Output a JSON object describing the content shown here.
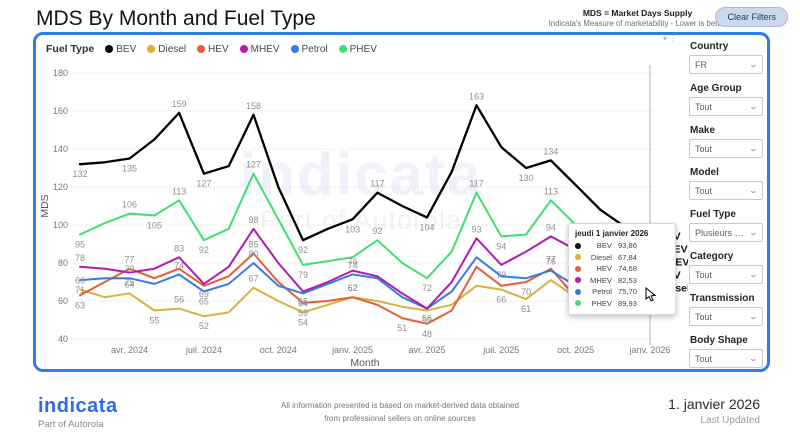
{
  "header": {
    "title": "MDS By Month and Fuel Type",
    "note_title": "MDS = Market Days Supply",
    "note_sub": "Indicata's Measure of marketability - Lower is better",
    "clear_filters_label": "Clear Filters"
  },
  "colors": {
    "card_border": "#2d7ce8",
    "accent_blue": "#2e6ce2"
  },
  "legend": {
    "title": "Fuel Type"
  },
  "chart_data": {
    "type": "line",
    "title": "MDS By Month and Fuel Type",
    "xlabel": "Month",
    "ylabel": "MDS",
    "ylim": [
      40,
      180
    ],
    "y_ticks": [
      40,
      60,
      80,
      100,
      120,
      140,
      160,
      180
    ],
    "grid": "dotted-horizontal",
    "legend_position": "top-left",
    "months": [
      "févr. 2024",
      "mars 2024",
      "avr. 2024",
      "mai 2024",
      "juin 2024",
      "juil. 2024",
      "août 2024",
      "sept. 2024",
      "oct. 2024",
      "nov. 2024",
      "déc. 2024",
      "janv. 2025",
      "févr. 2025",
      "mars 2025",
      "avr. 2025",
      "mai 2025",
      "juin 2025",
      "juil. 2025",
      "août 2025",
      "sept. 2025",
      "oct. 2025",
      "nov. 2025",
      "déc. 2025",
      "janv. 2026"
    ],
    "x_tick_labels": [
      "avr. 2024",
      "juil. 2024",
      "oct. 2024",
      "janv. 2025",
      "avr. 2025",
      "juil. 2025",
      "oct. 2025",
      "janv. 2026"
    ],
    "x_tick_month_indices": [
      2,
      5,
      8,
      11,
      14,
      17,
      20,
      23
    ],
    "cursor_month_index": 23,
    "series": [
      {
        "name": "BEV",
        "color": "#000000",
        "values": [
          132,
          133,
          135,
          145,
          159,
          127,
          131,
          158,
          120,
          92,
          98,
          103,
          117,
          110,
          104,
          128,
          163,
          141,
          130,
          134,
          121,
          108,
          99,
          93.86
        ],
        "labeled_months": [
          0,
          2,
          4,
          5,
          7,
          9,
          11,
          12,
          14,
          16,
          18,
          19,
          22
        ]
      },
      {
        "name": "Diesel",
        "color": "#d9b13c",
        "values": [
          66,
          62,
          64,
          55,
          56,
          52,
          54,
          67,
          60,
          54,
          58,
          62,
          60,
          57,
          55,
          58,
          68,
          66,
          61,
          71,
          62,
          61,
          64,
          67.84
        ],
        "labeled_months": [
          0,
          2,
          3,
          4,
          5,
          7,
          9,
          11,
          14,
          17,
          18,
          20,
          21
        ]
      },
      {
        "name": "HEV",
        "color": "#e55e38",
        "values": [
          63,
          70,
          77,
          72,
          77,
          68,
          73,
          85,
          70,
          59,
          60,
          62,
          58,
          51,
          48,
          55,
          78,
          68,
          70,
          77,
          62,
          64,
          68,
          74.68
        ],
        "labeled_months": [
          0,
          2,
          7,
          9,
          11,
          13,
          14,
          18,
          19
        ]
      },
      {
        "name": "MHEV",
        "color": "#b01ab1",
        "values": [
          78,
          77,
          75,
          77,
          83,
          69,
          78,
          98,
          80,
          65,
          70,
          76,
          73,
          64,
          56,
          70,
          93,
          79,
          86,
          94,
          87,
          84,
          83,
          82.53
        ],
        "labeled_months": [
          0,
          2,
          4,
          5,
          7,
          9,
          11,
          14,
          16,
          17,
          19
        ]
      },
      {
        "name": "Petrol",
        "color": "#3a7be0",
        "values": [
          71,
          72,
          72,
          69,
          74,
          65,
          69,
          80,
          68,
          64,
          69,
          74,
          72,
          62,
          56,
          65,
          83,
          73,
          72,
          76,
          68,
          67,
          70,
          75.7
        ],
        "labeled_months": [
          0,
          2,
          4,
          5,
          7,
          9,
          11,
          19
        ]
      },
      {
        "name": "PHEV",
        "color": "#41de70",
        "values": [
          95,
          101,
          106,
          105,
          113,
          92,
          98,
          127,
          103,
          79,
          81,
          83,
          92,
          80,
          72,
          86,
          117,
          94,
          95,
          113,
          100,
          94,
          91,
          89.93
        ],
        "labeled_months": [
          0,
          2,
          3,
          4,
          5,
          7,
          9,
          12,
          14,
          16,
          17,
          19
        ]
      }
    ]
  },
  "end_labels": [
    "BEV",
    "PHEV",
    "MHEV",
    "HEV",
    "Diesel"
  ],
  "tooltip": {
    "title": "jeudi 1 janvier 2026",
    "rows": [
      {
        "name": "BEV",
        "value": "93,86"
      },
      {
        "name": "Diesel",
        "value": "67,84"
      },
      {
        "name": "HEV",
        "value": "74,68"
      },
      {
        "name": "MHEV",
        "value": "82,53"
      },
      {
        "name": "Petrol",
        "value": "75,70"
      },
      {
        "name": "PHEV",
        "value": "89,93"
      }
    ]
  },
  "watermark": {
    "line1": "indicata",
    "line2": "Part of Autorola"
  },
  "filters": {
    "items": [
      {
        "label": "Country",
        "value": "FR"
      },
      {
        "label": "Age Group",
        "value": "Tout"
      },
      {
        "label": "Make",
        "value": "Tout"
      },
      {
        "label": "Model",
        "value": "Tout"
      },
      {
        "label": "Fuel Type",
        "value": "Plusieurs séle…"
      },
      {
        "label": "Category",
        "value": "Tout"
      },
      {
        "label": "Transmission",
        "value": "Tout"
      },
      {
        "label": "Body Shape",
        "value": "Tout"
      }
    ]
  },
  "footer": {
    "logo": "indicata",
    "logo_sub": "Part of Autorola",
    "disclaimer_l1": "All information presented is based on market-derived data obtained",
    "disclaimer_l2": "from professional sellers on online sources",
    "updated_date": "1. janvier 2026",
    "updated_label": "Last Updated"
  }
}
